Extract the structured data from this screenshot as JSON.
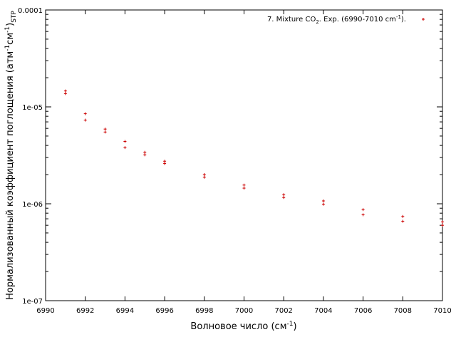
{
  "chart_data": {
    "type": "scatter",
    "xlabel": {
      "main": "Волновое число (см",
      "sup": "-1",
      "end": ")"
    },
    "ylabel": {
      "p1": "Нормализованный коэффициент поглощения (атм",
      "s1": "-1",
      "p2": "см",
      "s2": "-1",
      "p3": ")",
      "sub": "STP"
    },
    "legend": {
      "label_parts": [
        "7. Mixture CO",
        "2",
        ". Exp. (6990-7010 cm",
        "-1",
        ")."
      ],
      "marker": "+",
      "position": "top-right"
    },
    "xlim": [
      6990,
      7010
    ],
    "ylim": [
      1e-07,
      0.0001
    ],
    "yscale": "log",
    "grid": false,
    "x_ticks": [
      "6990",
      "6992",
      "6994",
      "6996",
      "6998",
      "7000",
      "7002",
      "7004",
      "7006",
      "7008",
      "7010"
    ],
    "y_ticks": [
      "1e-07",
      "1e-06",
      "1e-05",
      "0.0001"
    ],
    "series": [
      {
        "color": "#cc0000",
        "points": [
          [
            6991.0,
            1.46e-05
          ],
          [
            6991.0,
            1.37e-05
          ],
          [
            6992.0,
            8.5e-06
          ],
          [
            6992.0,
            7.3e-06
          ],
          [
            6993.0,
            5.9e-06
          ],
          [
            6993.0,
            5.5e-06
          ],
          [
            6994.0,
            4.4e-06
          ],
          [
            6994.0,
            3.8e-06
          ],
          [
            6995.0,
            3.4e-06
          ],
          [
            6995.0,
            3.2e-06
          ],
          [
            6996.0,
            2.75e-06
          ],
          [
            6996.0,
            2.6e-06
          ],
          [
            6998.0,
            2e-06
          ],
          [
            6998.0,
            1.88e-06
          ],
          [
            7000.0,
            1.56e-06
          ],
          [
            7000.0,
            1.45e-06
          ],
          [
            7002.0,
            1.24e-06
          ],
          [
            7002.0,
            1.16e-06
          ],
          [
            7004.0,
            1.07e-06
          ],
          [
            7004.0,
            9.9e-07
          ],
          [
            7006.0,
            8.7e-07
          ],
          [
            7006.0,
            7.7e-07
          ],
          [
            7008.0,
            7.4e-07
          ],
          [
            7008.0,
            6.6e-07
          ],
          [
            7010.0,
            6.5e-07
          ],
          [
            7010.0,
            6e-07
          ]
        ]
      }
    ]
  }
}
